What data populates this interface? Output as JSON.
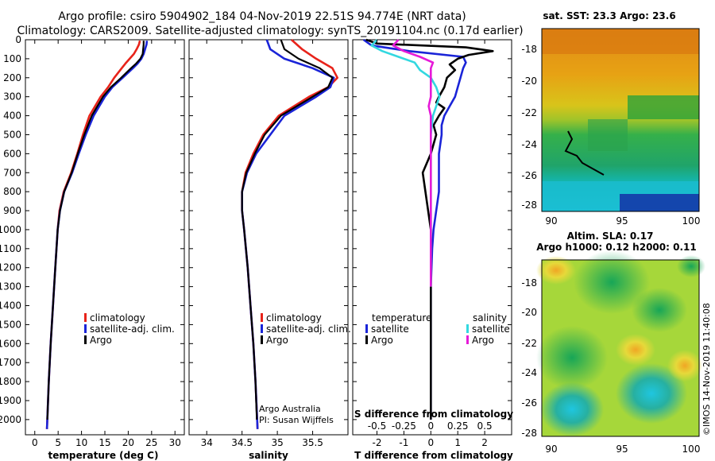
{
  "header": {
    "line1": "Argo profile: csiro 5904902_184 04-Nov-2019 22.51S 94.774E (NRT data)",
    "line2": "Climatology: CARS2009. Satellite-adjusted climatology: synTS_20191104.nc (0.17d earlier)"
  },
  "colors": {
    "climatology": "#e8231a",
    "satellite": "#1a24d8",
    "argo": "#000000",
    "sat_salinity": "#33d8e0",
    "argo_salinity": "#e61ad8"
  },
  "depth_axis": {
    "ticks": [
      0,
      100,
      200,
      300,
      400,
      500,
      600,
      700,
      800,
      900,
      1000,
      1100,
      1200,
      1300,
      1400,
      1500,
      1600,
      1700,
      1800,
      1900,
      2000
    ]
  },
  "chart_data": [
    {
      "type": "line",
      "id": "temperature",
      "xlabel": "temperature (deg C)",
      "xlim": [
        -2,
        32
      ],
      "ylim": [
        0,
        2080
      ],
      "xticks": [
        0,
        5,
        10,
        15,
        20,
        25,
        30
      ],
      "legend": [
        "climatology",
        "satellite-adj. clim.",
        "Argo"
      ],
      "series": [
        {
          "name": "climatology",
          "color": "#e8231a",
          "depth": [
            5,
            25,
            50,
            75,
            100,
            125,
            150,
            200,
            250,
            300,
            400,
            500,
            600,
            700,
            800,
            900,
            1000,
            1200,
            1400,
            1600,
            1800,
            2050
          ],
          "values": [
            22.5,
            22.3,
            21.8,
            21.2,
            20.3,
            19.4,
            18.6,
            17.0,
            15.7,
            14.1,
            11.7,
            10.3,
            9.1,
            7.8,
            6.2,
            5.3,
            4.9,
            4.4,
            3.9,
            3.4,
            3.0,
            2.6
          ]
        },
        {
          "name": "satellite-adj. clim.",
          "color": "#1a24d8",
          "depth": [
            5,
            25,
            50,
            75,
            100,
            125,
            150,
            200,
            250,
            300,
            400,
            500,
            600,
            700,
            800,
            900,
            1000,
            1200,
            1400,
            1600,
            1800,
            2050
          ],
          "values": [
            24.0,
            23.9,
            23.6,
            23.3,
            22.8,
            22.0,
            21.0,
            18.8,
            16.6,
            15.0,
            12.6,
            10.9,
            9.4,
            8.0,
            6.3,
            5.4,
            4.9,
            4.4,
            3.9,
            3.4,
            3.0,
            2.6
          ]
        },
        {
          "name": "Argo",
          "color": "#000000",
          "depth": [
            5,
            25,
            50,
            75,
            100,
            125,
            150,
            200,
            250,
            300,
            400,
            500,
            600,
            700,
            800,
            900,
            1000,
            1200,
            1400,
            1600,
            1800,
            2000
          ],
          "values": [
            23.3,
            23.3,
            23.2,
            23.1,
            22.6,
            21.7,
            20.6,
            18.5,
            16.3,
            14.6,
            12.2,
            10.6,
            9.2,
            7.9,
            6.3,
            5.4,
            4.9,
            4.4,
            3.9,
            3.4,
            3.0,
            2.7
          ]
        }
      ]
    },
    {
      "type": "line",
      "id": "salinity",
      "xlabel": "salinity",
      "xlim": [
        33.75,
        36.0
      ],
      "ylim": [
        0,
        2080
      ],
      "xticks": [
        34,
        34.5,
        35,
        35.5
      ],
      "xticklabels": [
        "34",
        "34.5",
        "35",
        "35.5"
      ],
      "legend": [
        "climatology",
        "satellite-adj. clim.",
        "Argo"
      ],
      "annotation": [
        "Argo Australia",
        "PI: Susan Wijffels"
      ],
      "series": [
        {
          "name": "climatology",
          "color": "#e8231a",
          "depth": [
            0,
            50,
            100,
            150,
            200,
            250,
            300,
            400,
            500,
            600,
            700,
            800,
            900,
            1000,
            1200,
            1400,
            1600,
            1800,
            2050
          ],
          "values": [
            35.2,
            35.35,
            35.55,
            35.78,
            35.85,
            35.72,
            35.45,
            35.02,
            34.8,
            34.66,
            34.55,
            34.5,
            34.5,
            34.53,
            34.58,
            34.62,
            34.66,
            34.69,
            34.72
          ]
        },
        {
          "name": "satellite-adj. clim.",
          "color": "#1a24d8",
          "depth": [
            0,
            50,
            100,
            150,
            200,
            250,
            300,
            400,
            500,
            600,
            700,
            800,
            900,
            1000,
            1200,
            1400,
            1600,
            1800,
            2050
          ],
          "values": [
            34.85,
            34.9,
            35.1,
            35.5,
            35.8,
            35.75,
            35.55,
            35.1,
            34.9,
            34.7,
            34.57,
            34.5,
            34.5,
            34.53,
            34.58,
            34.62,
            34.66,
            34.69,
            34.72
          ]
        },
        {
          "name": "Argo",
          "color": "#000000",
          "depth": [
            0,
            50,
            100,
            150,
            200,
            250,
            300,
            400,
            500,
            600,
            700,
            800,
            900,
            1000,
            1200,
            1400,
            1600,
            1800,
            2000
          ],
          "values": [
            35.05,
            35.1,
            35.3,
            35.6,
            35.78,
            35.72,
            35.5,
            35.05,
            34.82,
            34.68,
            34.56,
            34.5,
            34.5,
            34.53,
            34.58,
            34.62,
            34.66,
            34.69,
            34.71
          ]
        }
      ]
    },
    {
      "type": "line",
      "id": "difference",
      "xlabel": "T difference from climatology",
      "xlabel_top": "S difference from climatology",
      "xlim": [
        -2.9,
        3.0
      ],
      "ylim": [
        0,
        2080
      ],
      "xticks": [
        -2,
        -1,
        0,
        1,
        2
      ],
      "xticklabels": [
        "-2",
        "-1",
        "0",
        "1",
        "2"
      ],
      "sticks": [
        -0.5,
        -0.25,
        0,
        0.25,
        0.5
      ],
      "sticklabels": [
        "-0.5",
        "-0.25",
        "0",
        "0.25",
        "0.5"
      ],
      "legend_left_title": "temperature",
      "legend_right_title": "salinity",
      "legend_left": [
        "satellite",
        "Argo"
      ],
      "legend_right": [
        "satellite",
        "Argo"
      ],
      "series": [
        {
          "name": "T satellite",
          "color": "#1a24d8",
          "depth": [
            0,
            30,
            60,
            90,
            120,
            150,
            200,
            250,
            300,
            350,
            400,
            450,
            500,
            550,
            600,
            700,
            800,
            900,
            1000,
            1100,
            1300,
            1600,
            2000
          ],
          "values": [
            -2.5,
            -2.2,
            -0.8,
            1.2,
            1.3,
            1.2,
            1.1,
            1.0,
            0.9,
            0.7,
            0.5,
            0.4,
            0.4,
            0.35,
            0.3,
            0.3,
            0.3,
            0.2,
            0.1,
            0.05,
            0.0,
            0.0,
            0.0
          ]
        },
        {
          "name": "T Argo",
          "color": "#000000",
          "depth": [
            0,
            20,
            40,
            60,
            80,
            100,
            130,
            160,
            200,
            250,
            300,
            330,
            360,
            400,
            450,
            500,
            600,
            700,
            800,
            900,
            1000,
            1300,
            2000
          ],
          "values": [
            -2.4,
            -2.0,
            1.3,
            2.3,
            1.4,
            1.0,
            0.7,
            0.9,
            0.6,
            0.5,
            0.3,
            0.2,
            0.5,
            0.3,
            0.1,
            0.2,
            0.0,
            -0.3,
            -0.2,
            -0.1,
            0.0,
            0.0,
            0.0
          ]
        },
        {
          "name": "S satellite",
          "color": "#33d8e0",
          "depth": [
            0,
            30,
            60,
            90,
            120,
            160,
            200,
            250,
            300,
            350,
            400,
            500,
            600,
            700,
            800,
            900,
            1000,
            1100,
            1300
          ],
          "values": [
            -0.5,
            -0.55,
            -0.45,
            -0.3,
            -0.15,
            -0.1,
            0.0,
            0.05,
            0.08,
            0.05,
            0.02,
            0.0,
            0.0,
            0.0,
            0.0,
            0.0,
            0.0,
            0.0,
            0.0
          ]
        },
        {
          "name": "S Argo",
          "color": "#e61ad8",
          "depth": [
            0,
            30,
            60,
            90,
            120,
            150,
            200,
            250,
            300,
            350,
            400,
            500,
            600,
            700,
            800,
            900,
            1000,
            1100,
            1300
          ],
          "values": [
            -0.3,
            -0.35,
            -0.25,
            -0.1,
            0.02,
            0.0,
            0.0,
            0.0,
            0.0,
            -0.02,
            0.0,
            0.0,
            0.0,
            0.0,
            0.0,
            0.0,
            0.0,
            0.0,
            0.0
          ]
        }
      ]
    }
  ],
  "sst_map": {
    "title": "sat. SST: 23.3 Argo: 23.6",
    "xticks": [
      "90",
      "95",
      "100"
    ],
    "yticks": [
      "-18",
      "-20",
      "-22",
      "-24",
      "-26",
      "-28"
    ]
  },
  "sla_map": {
    "title1": "Altim. SLA: 0.17",
    "title2": "Argo h1000: 0.12 h2000: 0.11",
    "xticks": [
      "90",
      "95",
      "100"
    ],
    "yticks": [
      "-18",
      "-20",
      "-22",
      "-24",
      "-26",
      "-28"
    ]
  },
  "credit": "©IMOS 14-Nov-2019 11:40:08"
}
